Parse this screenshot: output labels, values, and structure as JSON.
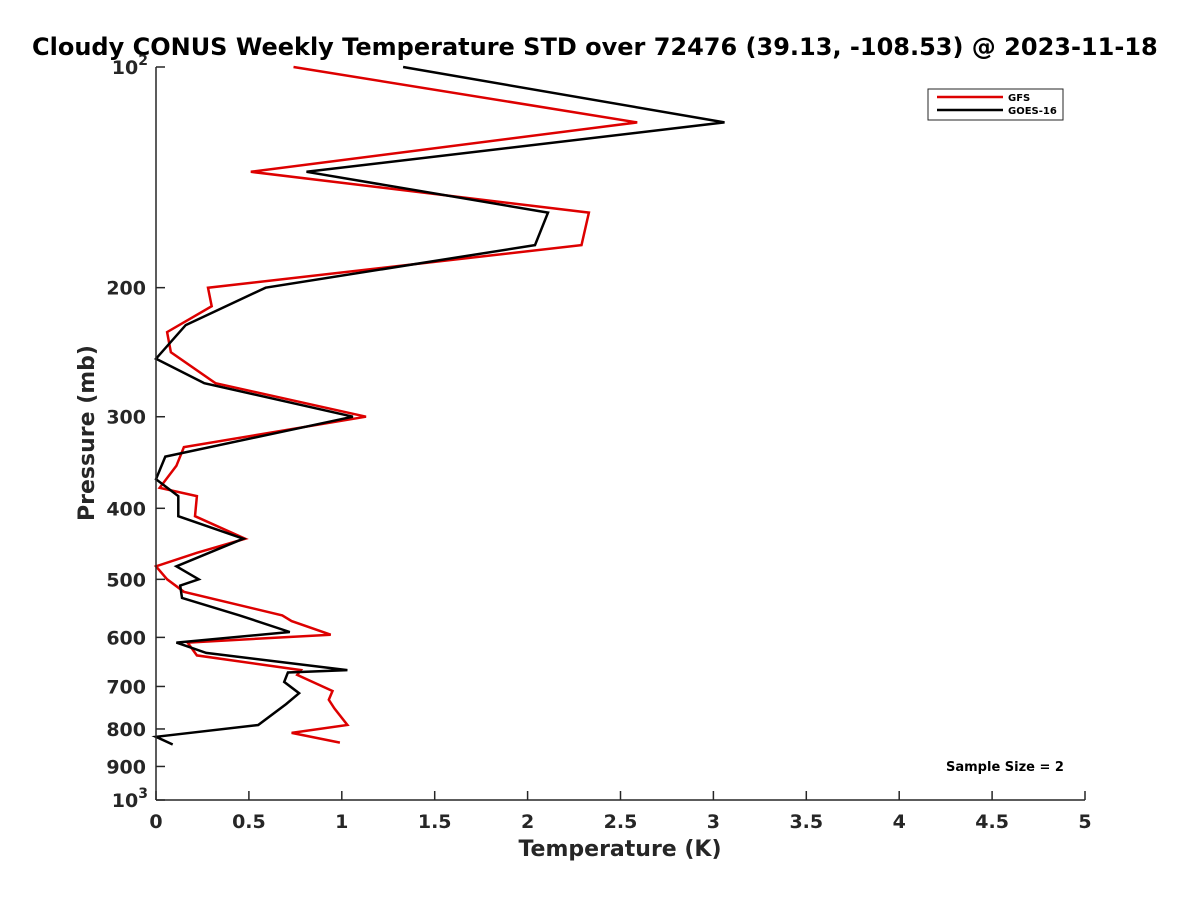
{
  "chart_data": {
    "type": "line",
    "title": "Cloudy CONUS Weekly Temperature STD over 72476 (39.13, -108.53) @ 2023-11-18",
    "xlabel": "Temperature (K)",
    "ylabel": "Pressure (mb)",
    "xlim": [
      0,
      5
    ],
    "ylim": [
      100,
      1000
    ],
    "y_scale": "log",
    "y_reversed": true,
    "x_ticks": [
      "0",
      "0.5",
      "1",
      "1.5",
      "2",
      "2.5",
      "3",
      "3.5",
      "4",
      "4.5",
      "5"
    ],
    "y_ticks": [
      {
        "value": 100,
        "label": "10",
        "sup": "2"
      },
      {
        "value": 200,
        "label": "200",
        "sup": ""
      },
      {
        "value": 300,
        "label": "300",
        "sup": ""
      },
      {
        "value": 400,
        "label": "400",
        "sup": ""
      },
      {
        "value": 500,
        "label": "500",
        "sup": ""
      },
      {
        "value": 600,
        "label": "600",
        "sup": ""
      },
      {
        "value": 700,
        "label": "700",
        "sup": ""
      },
      {
        "value": 800,
        "label": "800",
        "sup": ""
      },
      {
        "value": 900,
        "label": "900",
        "sup": ""
      },
      {
        "value": 1000,
        "label": "10",
        "sup": "3"
      }
    ],
    "grid": false,
    "legend_position": "top-right",
    "annotation": "Sample Size = 2",
    "series": [
      {
        "name": "GFS",
        "color": "#dd0000",
        "points": [
          [
            0.74,
            100
          ],
          [
            2.59,
            119
          ],
          [
            0.51,
            139
          ],
          [
            2.33,
            158
          ],
          [
            2.29,
            175
          ],
          [
            0.28,
            200
          ],
          [
            0.3,
            212
          ],
          [
            0.06,
            230
          ],
          [
            0.08,
            245
          ],
          [
            0.32,
            270
          ],
          [
            1.13,
            300
          ],
          [
            0.15,
            330
          ],
          [
            0.11,
            350
          ],
          [
            0.02,
            375
          ],
          [
            0.22,
            385
          ],
          [
            0.21,
            410
          ],
          [
            0.48,
            440
          ],
          [
            0.22,
            460
          ],
          [
            0.0,
            480
          ],
          [
            0.06,
            500
          ],
          [
            0.15,
            520
          ],
          [
            0.68,
            560
          ],
          [
            0.73,
            570
          ],
          [
            0.94,
            595
          ],
          [
            0.17,
            610
          ],
          [
            0.22,
            635
          ],
          [
            0.78,
            665
          ],
          [
            0.76,
            675
          ],
          [
            0.95,
            710
          ],
          [
            0.93,
            730
          ],
          [
            0.96,
            750
          ],
          [
            1.03,
            790
          ],
          [
            0.73,
            810
          ],
          [
            0.99,
            835
          ]
        ]
      },
      {
        "name": "GOES-16",
        "color": "#000000",
        "points": [
          [
            1.33,
            100
          ],
          [
            3.06,
            119
          ],
          [
            0.81,
            139
          ],
          [
            2.11,
            158
          ],
          [
            2.04,
            175
          ],
          [
            0.59,
            200
          ],
          [
            0.16,
            225
          ],
          [
            0.0,
            250
          ],
          [
            0.26,
            270
          ],
          [
            1.06,
            300
          ],
          [
            0.05,
            340
          ],
          [
            0.0,
            365
          ],
          [
            0.12,
            385
          ],
          [
            0.12,
            410
          ],
          [
            0.47,
            440
          ],
          [
            0.11,
            480
          ],
          [
            0.23,
            500
          ],
          [
            0.13,
            510
          ],
          [
            0.14,
            530
          ],
          [
            0.45,
            560
          ],
          [
            0.72,
            590
          ],
          [
            0.11,
            610
          ],
          [
            0.27,
            630
          ],
          [
            1.03,
            665
          ],
          [
            0.71,
            670
          ],
          [
            0.69,
            690
          ],
          [
            0.77,
            715
          ],
          [
            0.7,
            740
          ],
          [
            0.55,
            790
          ],
          [
            0.0,
            820
          ],
          [
            0.09,
            840
          ]
        ]
      }
    ]
  }
}
